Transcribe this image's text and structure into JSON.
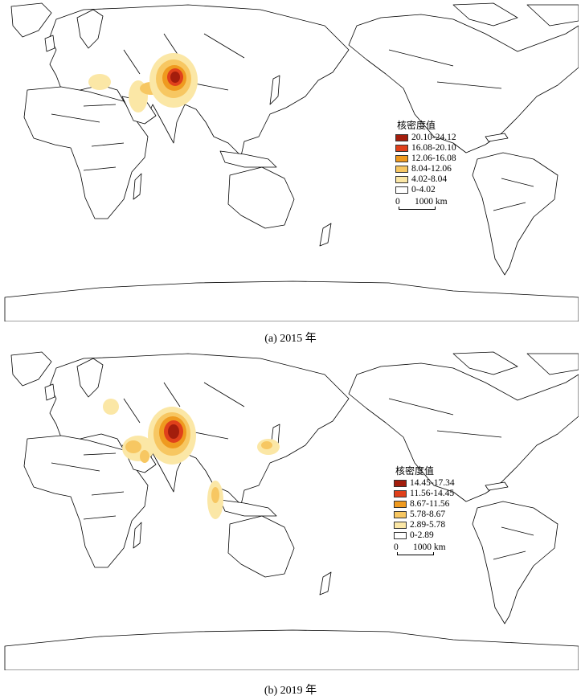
{
  "maps": [
    {
      "caption": "(a) 2015 年",
      "legend": {
        "title": "核密度值",
        "classes": [
          {
            "label": "20.10-24.12",
            "color": "#a31d0c"
          },
          {
            "label": "16.08-20.10",
            "color": "#e0401b"
          },
          {
            "label": "12.06-16.08",
            "color": "#ef9a1f"
          },
          {
            "label": "8.04-12.06",
            "color": "#f7c762"
          },
          {
            "label": "4.02-8.04",
            "color": "#fbe7a6"
          },
          {
            "label": "0-4.02",
            "color": "#ffffff"
          }
        ],
        "scale": {
          "zero": "0",
          "distance": "1000 km"
        }
      }
    },
    {
      "caption": "(b) 2019 年",
      "legend": {
        "title": "核密度值",
        "classes": [
          {
            "label": "14.45-17.34",
            "color": "#a31d0c"
          },
          {
            "label": "11.56-14.45",
            "color": "#e0401b"
          },
          {
            "label": "8.67-11.56",
            "color": "#ef9a1f"
          },
          {
            "label": "5.78-8.67",
            "color": "#f7c762"
          },
          {
            "label": "2.89-5.78",
            "color": "#fbe7a6"
          },
          {
            "label": "0-2.89",
            "color": "#ffffff"
          }
        ],
        "scale": {
          "zero": "0",
          "distance": "1000 km"
        }
      }
    }
  ]
}
